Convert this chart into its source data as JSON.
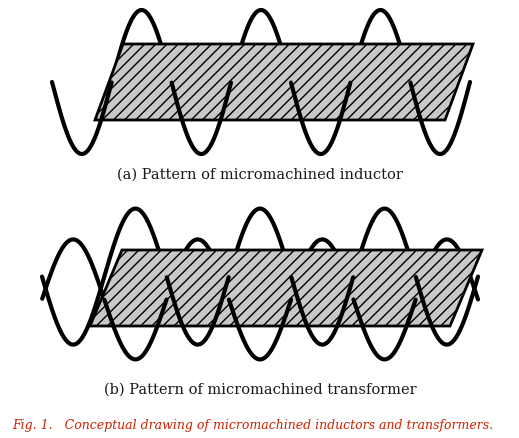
{
  "fig_width": 5.19,
  "fig_height": 4.38,
  "dpi": 100,
  "bg_color": "#ffffff",
  "coil_color": "#000000",
  "core_fill": "#c8c8c8",
  "core_hatch": "///",
  "core_edge": "#000000",
  "label_a": "(a) Pattern of micromachined inductor",
  "label_b": "(b) Pattern of micromachined transformer",
  "caption": "Fig. 1.   Conceptual drawing of micromachined inductors and transformers.",
  "caption_color": "#cc2200",
  "label_fontsize": 10.5,
  "caption_fontsize": 9,
  "coil_linewidth": 3.0,
  "core_linewidth": 2.0
}
